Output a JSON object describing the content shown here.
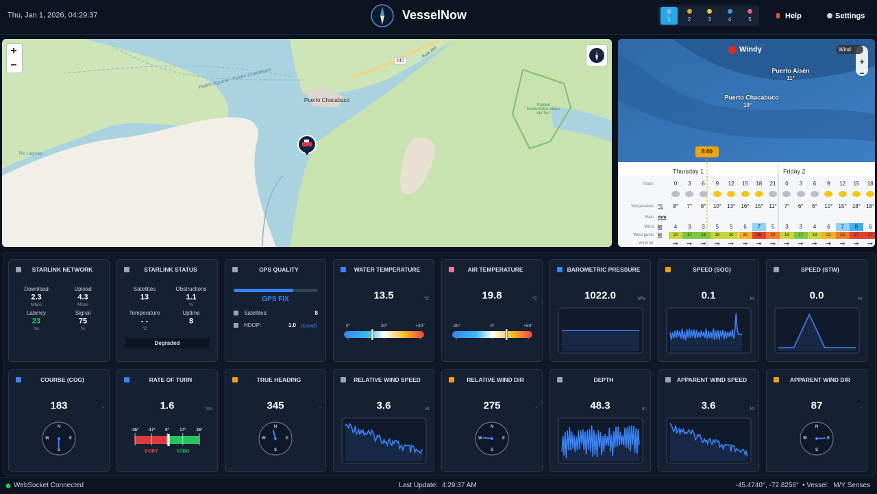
{
  "header": {
    "datetime": "Thu, Jan 1, 2026, 04:29:37",
    "title": "VesselNow",
    "tabs": [
      "1",
      "2",
      "3",
      "4",
      "5"
    ],
    "help": "Help",
    "settings": "Settings"
  },
  "map": {
    "zoom_in": "+",
    "zoom_out": "−",
    "labels": [
      "Puerto Chacabuco",
      "240",
      "Ruta 240",
      "Parque Ecoturístico Aikén del Sur",
      "Puerto Aguirre - Puerto Chacabuco",
      "Río Lagunas"
    ]
  },
  "windy": {
    "brand": "Windy",
    "layer": "Wind",
    "zoom_in": "+",
    "zoom_out": "−",
    "places": [
      {
        "name": "Puerto Aisén",
        "temp": "11°"
      },
      {
        "name": "Puerto Chacabuco",
        "temp": "10°"
      }
    ],
    "time": "8:00",
    "days": [
      "Thursday 1",
      "Friday 2"
    ],
    "rows": [
      {
        "label": "Hours",
        "cells": [
          "0",
          "3",
          "6",
          "9",
          "12",
          "15",
          "18",
          "21",
          "0",
          "3",
          "6",
          "9",
          "12",
          "15",
          "18"
        ]
      },
      {
        "label": "Temperature",
        "unit": "°C",
        "cells": [
          "8°",
          "7°",
          "8°",
          "10°",
          "13°",
          "16°",
          "15°",
          "11°",
          "7°",
          "6°",
          "6°",
          "10°",
          "15°",
          "18°",
          "18°"
        ]
      },
      {
        "label": "Rain",
        "unit": "mm"
      },
      {
        "label": "Wind",
        "unit": "kt",
        "cells": [
          "4",
          "3",
          "3",
          "5",
          "5",
          "6",
          "7",
          "5",
          "3",
          "3",
          "4",
          "6",
          "7",
          "8",
          "6"
        ]
      },
      {
        "label": "Wind gusts",
        "unit": "kt",
        "cells": [
          "20",
          "17",
          "16",
          "18",
          "20",
          "22",
          "26",
          "24",
          "19",
          "17",
          "18",
          "22",
          "25",
          "27",
          "27"
        ]
      },
      {
        "label": "Wind dir"
      }
    ]
  },
  "compass": {
    "n": "N",
    "e": "E",
    "s": "S",
    "w": "W"
  },
  "panels": [
    {
      "title": "STARLINK NETWORK",
      "metrics": [
        {
          "label": "Download",
          "value": "2.3",
          "unit": "Mbps"
        },
        {
          "label": "Upload",
          "value": "4.3",
          "unit": "Mbps"
        },
        {
          "label": "Latency",
          "value": "23",
          "unit": "ms"
        },
        {
          "label": "Signal",
          "value": "75",
          "unit": "%"
        }
      ]
    },
    {
      "title": "STARLINK STATUS",
      "metrics": [
        {
          "label": "Satellites",
          "value": "13"
        },
        {
          "label": "Obstructions",
          "value": "1.1",
          "unit": "%"
        },
        {
          "label": "Temperature",
          "value": "- -",
          "unit": "°C"
        },
        {
          "label": "Uptime",
          "value": "8"
        }
      ],
      "state": "Degraded"
    },
    {
      "title": "GPS QUALITY",
      "fix": "GPS FIX",
      "satellites_label": "Satellites:",
      "satellites": "8",
      "hdop_label": "HDOP:",
      "hdop": "1.0",
      "hdop_quality": "(Good)"
    },
    {
      "title": "WATER TEMPERATURE",
      "value": "13.5",
      "unit": "°C",
      "scale": [
        {
          "value": 0,
          "label": "0°"
        },
        {
          "value": 20,
          "label": "20°"
        },
        {
          "value": 30,
          "label": "+30°"
        }
      ]
    },
    {
      "title": "AIR TEMPERATURE",
      "value": "19.8",
      "unit": "°C",
      "scale": [
        {
          "value": -30,
          "label": "-30°"
        },
        {
          "value": 0,
          "label": "0°"
        },
        {
          "value": 50,
          "label": "+50°"
        }
      ]
    },
    {
      "title": "BAROMETRIC PRESSURE",
      "value": "1022.0",
      "unit": "hPa"
    },
    {
      "title": "SPEED (SOG)",
      "value": "0.1",
      "unit": "kt"
    },
    {
      "title": "SPEED (STW)",
      "value": "0.0",
      "unit": "kt"
    },
    {
      "title": "COURSE (COG)",
      "value": "183",
      "unit": "°"
    },
    {
      "title": "RATE OF TURN",
      "value": "1.6",
      "unit": "°/mi",
      "scale": [
        {
          "value": -35,
          "label": "-35°"
        },
        {
          "value": -17,
          "label": "-17°"
        },
        {
          "value": 0,
          "label": "0°"
        },
        {
          "value": 17,
          "label": "17°"
        },
        {
          "value": 35,
          "label": "35°"
        }
      ],
      "port": "PORT",
      "stbd": "STBD"
    },
    {
      "title": "TRUE HEADING",
      "value": "345",
      "unit": "°"
    },
    {
      "title": "RELATIVE WIND SPEED",
      "value": "3.6",
      "unit": "kt"
    },
    {
      "title": "RELATIVE WIND DIR",
      "value": "275",
      "unit": "°"
    },
    {
      "title": "DEPTH",
      "value": "48.3",
      "unit": "m"
    },
    {
      "title": "APPARENT WIND SPEED",
      "value": "3.6",
      "unit": "kt"
    },
    {
      "title": "APPARENT WIND DIR",
      "value": "87",
      "unit": "°"
    }
  ],
  "footer": {
    "status": "WebSocket Connected",
    "update_label": "Last Update:",
    "update_time": "4:29:37 AM",
    "position": "-45.4740°, -72.8256°",
    "vessel_label": "• Vessel:",
    "vessel": "M/Y Senses"
  }
}
